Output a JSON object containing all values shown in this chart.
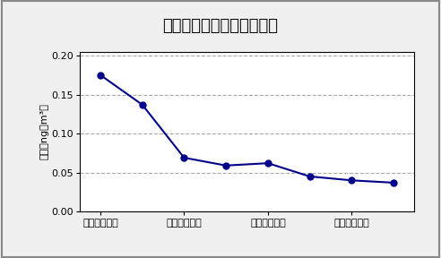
{
  "title": "ベリリウム及びその化合物",
  "xlabel_ticks": [
    0,
    2,
    4,
    6
  ],
  "xlabel_labels": [
    "平成１０年度",
    "平成１２年度",
    "平成１４年度",
    "平成１６年度"
  ],
  "x": [
    0,
    1,
    2,
    3,
    4,
    5,
    6,
    7
  ],
  "y": [
    0.175,
    0.137,
    0.069,
    0.059,
    0.062,
    0.045,
    0.04,
    0.037
  ],
  "ylabel": "濃度（ng／m³）",
  "ylim": [
    0.0,
    0.205
  ],
  "yticks": [
    0.0,
    0.05,
    0.1,
    0.15,
    0.2
  ],
  "ytick_labels": [
    "0.00",
    "0.05",
    "0.10",
    "0.15",
    "0.20"
  ],
  "line_color": "#00008B",
  "marker_color": "#00008B",
  "grid_color": "#aaaaaa",
  "bg_color": "#f0f0f0",
  "plot_bg_color": "#ffffff",
  "border_color": "#000000",
  "outer_border_color": "#888888",
  "title_fontsize": 13,
  "label_fontsize": 8,
  "tick_fontsize": 8
}
